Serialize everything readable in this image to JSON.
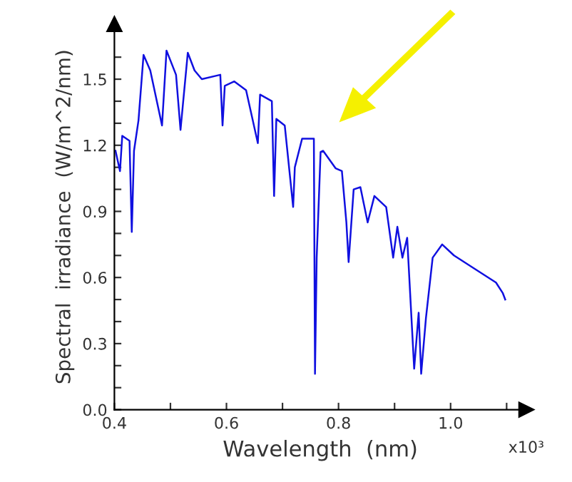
{
  "chart_data": {
    "type": "line",
    "xlabel": "Wavelength  (nm)",
    "ylabel": "Spectral  irradiance  (W/m^2/nm)",
    "annotations": [
      "x10³"
    ],
    "x": [
      0.402,
      0.41,
      0.414,
      0.427,
      0.431,
      0.435,
      0.443,
      0.452,
      0.464,
      0.485,
      0.493,
      0.51,
      0.518,
      0.531,
      0.543,
      0.556,
      0.589,
      0.593,
      0.597,
      0.614,
      0.635,
      0.656,
      0.66,
      0.681,
      0.685,
      0.689,
      0.704,
      0.719,
      0.722,
      0.735,
      0.756,
      0.758,
      0.761,
      0.768,
      0.7725,
      0.795,
      0.806,
      0.814,
      0.818,
      0.827,
      0.839,
      0.852,
      0.864,
      0.885,
      0.8975,
      0.905,
      0.914,
      0.9225,
      0.935,
      0.943,
      0.9475,
      0.956,
      0.968,
      0.985,
      1.006,
      1.039,
      1.081,
      1.093,
      1.0975
    ],
    "series": [
      {
        "color": "#1010e0",
        "values": [
          1.175,
          1.083,
          1.243,
          1.22,
          0.807,
          1.175,
          1.313,
          1.61,
          1.54,
          1.29,
          1.63,
          1.52,
          1.27,
          1.62,
          1.54,
          1.5,
          1.52,
          1.29,
          1.47,
          1.49,
          1.45,
          1.21,
          1.43,
          1.4,
          0.97,
          1.32,
          1.29,
          0.92,
          1.1,
          1.23,
          1.23,
          0.163,
          0.69,
          1.17,
          1.175,
          1.095,
          1.083,
          0.85,
          0.67,
          1.0,
          1.01,
          0.85,
          0.97,
          0.92,
          0.69,
          0.83,
          0.69,
          0.78,
          0.186,
          0.44,
          0.163,
          0.416,
          0.69,
          0.75,
          0.7,
          0.646,
          0.577,
          0.53,
          0.5
        ]
      }
    ],
    "xlim": [
      0.4,
      1.135
    ],
    "ylim": [
      0.0,
      1.75
    ],
    "xticks": [
      0.4,
      {
        "value": 0.5,
        "label": null
      },
      0.6,
      {
        "value": 0.7,
        "label": null
      },
      0.8,
      {
        "value": 0.9,
        "label": null
      },
      {
        "value": 1.0,
        "label": "1.0"
      },
      {
        "value": 1.1,
        "label": null
      }
    ],
    "yticks": [
      {
        "value": 0.0,
        "label": "0.0"
      },
      {
        "value": 0.1,
        "label": null
      },
      {
        "value": 0.2,
        "label": null
      },
      {
        "value": 0.3,
        "label": "0.3"
      },
      {
        "value": 0.4,
        "label": null
      },
      {
        "value": 0.5,
        "label": null
      },
      {
        "value": 0.6,
        "label": "0.6"
      },
      {
        "value": 0.7,
        "label": null
      },
      {
        "value": 0.8,
        "label": null
      },
      {
        "value": 0.9,
        "label": "0.9"
      },
      {
        "value": 1.0,
        "label": null
      },
      {
        "value": 1.1,
        "label": null
      },
      {
        "value": 1.2,
        "label": "1.2"
      },
      {
        "value": 1.3,
        "label": null
      },
      {
        "value": 1.4,
        "label": null
      },
      {
        "value": 1.5,
        "label": "1.5"
      },
      {
        "value": 1.6,
        "label": null
      }
    ],
    "grid": false,
    "legend": false,
    "marker": "none",
    "line_style": "solid"
  }
}
